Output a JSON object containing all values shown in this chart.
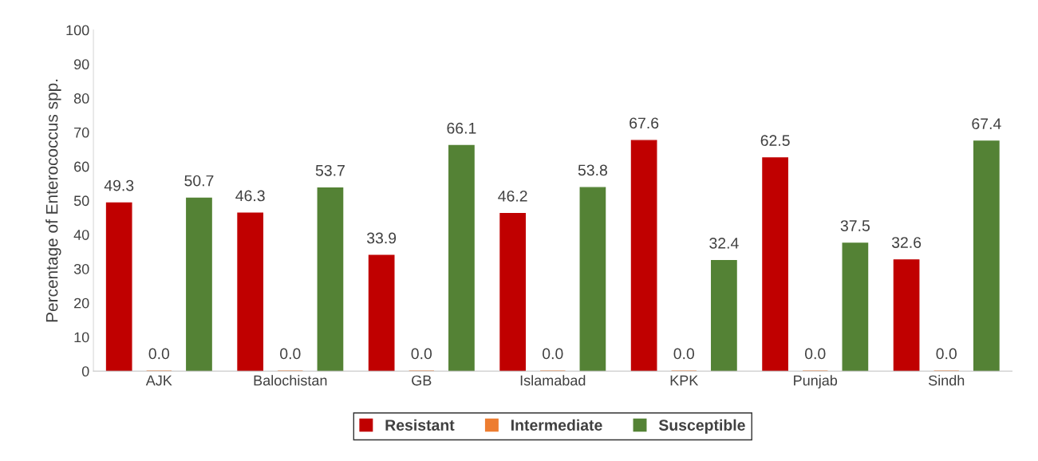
{
  "chart_data": {
    "type": "bar",
    "ylabel": "Percentage of Enterococcus spp.",
    "categories": [
      "AJK",
      "Balochistan",
      "GB",
      "Islamabad",
      "KPK",
      "Punjab",
      "Sindh"
    ],
    "series": [
      {
        "name": "Resistant",
        "color": "#c00000",
        "values": [
          49.3,
          46.3,
          33.9,
          46.2,
          67.6,
          62.5,
          32.6
        ],
        "value_labels": [
          "49.3",
          "46.3",
          "33.9",
          "46.2",
          "67.6",
          "62.5",
          "32.6"
        ]
      },
      {
        "name": "Intermediate",
        "color": "#ed7d31",
        "values": [
          0,
          0,
          0,
          0,
          0,
          0,
          0
        ],
        "value_labels": [
          "0.0",
          "0.0",
          "0.0",
          "0.0",
          "0.0",
          "0.0",
          "0.0"
        ]
      },
      {
        "name": "Susceptible",
        "color": "#548235",
        "values": [
          50.7,
          53.7,
          66.1,
          53.8,
          32.4,
          37.5,
          67.4
        ],
        "value_labels": [
          "50.7",
          "53.7",
          "66.1",
          "53.8",
          "32.4",
          "37.5",
          "67.4"
        ]
      }
    ],
    "ylim": [
      0,
      100
    ],
    "yticks": [
      0,
      10,
      20,
      30,
      40,
      50,
      60,
      70,
      80,
      90,
      100
    ],
    "grid": false,
    "legend": "bottom"
  }
}
